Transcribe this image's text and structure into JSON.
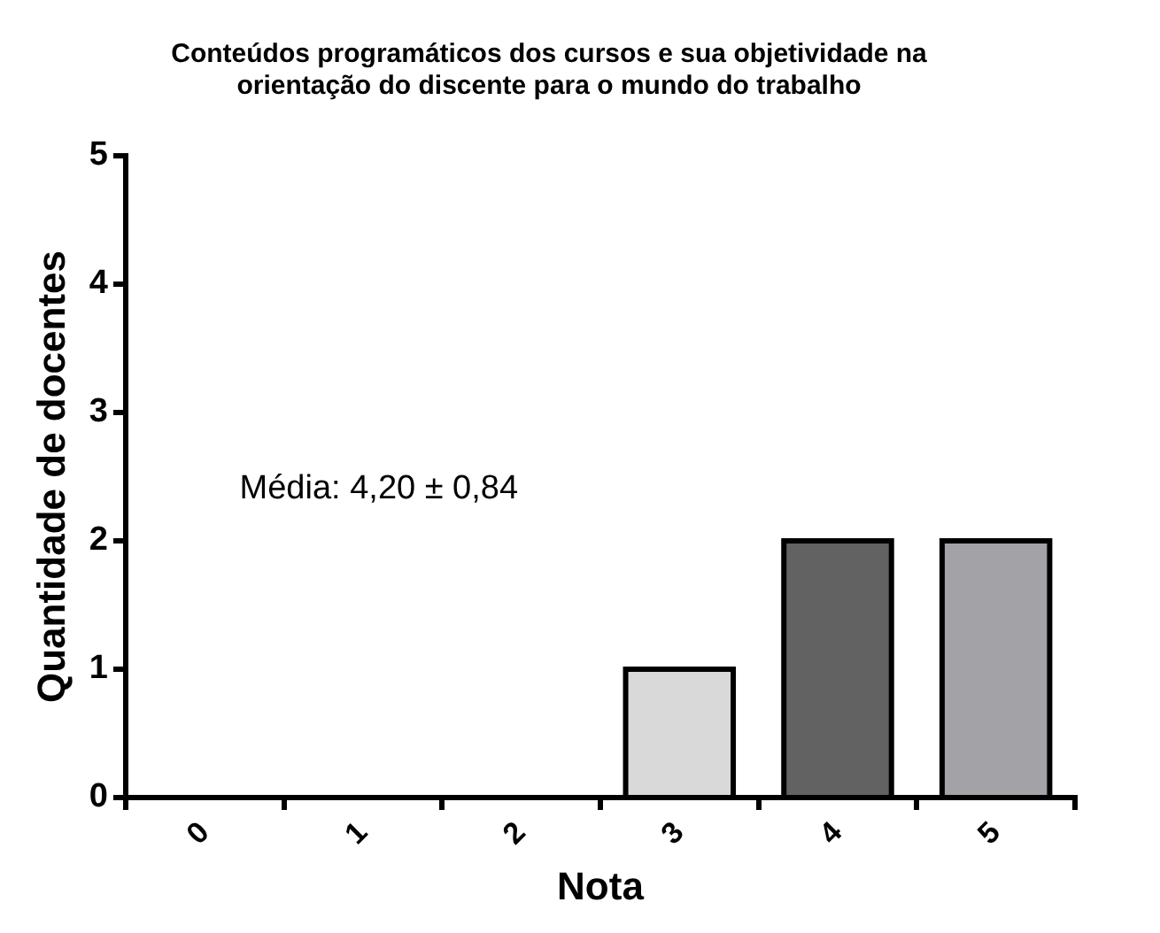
{
  "chart_data": {
    "type": "bar",
    "title": "Conteúdos programáticos dos cursos e sua objetividade na orientação do discente para o mundo do trabalho",
    "xlabel": "Nota",
    "ylabel": "Quantidade de docentes",
    "categories": [
      "0",
      "1",
      "2",
      "3",
      "4",
      "5"
    ],
    "values": [
      0,
      0,
      0,
      1,
      2,
      2
    ],
    "colors": [
      "#d9d9d9",
      "#d9d9d9",
      "#d9d9d9",
      "#d9d9d9",
      "#626262",
      "#a3a3a7"
    ],
    "ylim": [
      0,
      5
    ],
    "yticks": [
      0,
      1,
      2,
      3,
      4,
      5
    ],
    "grid": false,
    "legend": false,
    "annotations": [
      "Média: 4,20 ± 0,84"
    ]
  }
}
